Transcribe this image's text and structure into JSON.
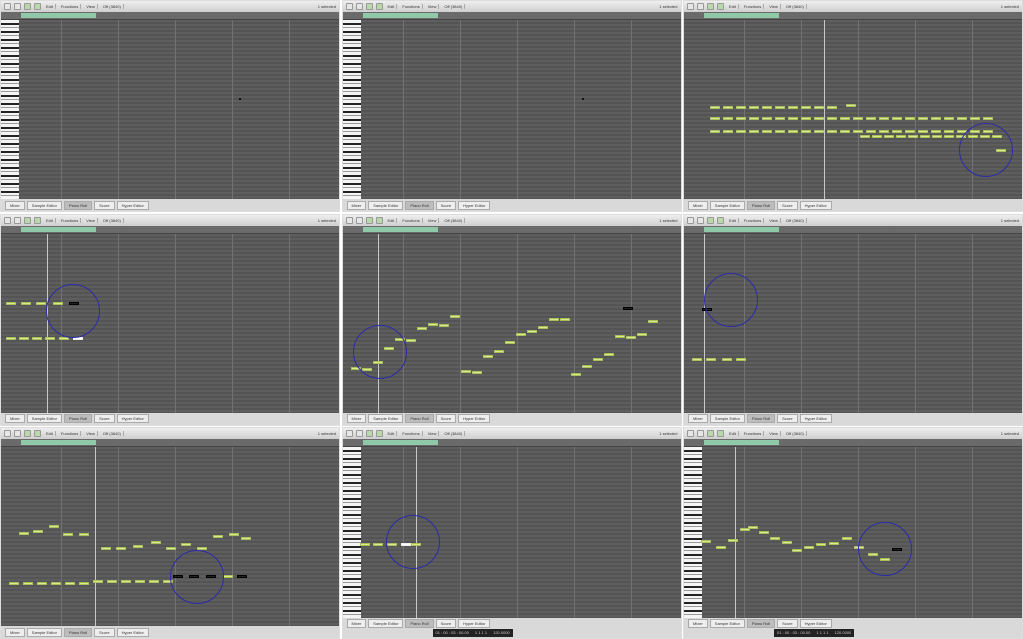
{
  "toolbar": {
    "menus": [
      "Edit",
      "Functions",
      "View"
    ],
    "selector": "Off (3840)",
    "track_label": "1 selected"
  },
  "bottom_tabs": [
    "Mixer",
    "Sample Editor",
    "Piano Roll",
    "Score",
    "Hyper Editor"
  ],
  "active_tab": "Piano Roll",
  "transport": {
    "position": "01 : 00 : 03 : 00.00",
    "bars": "1 1 1 1",
    "tempo": "120.0000"
  },
  "colors": {
    "note": "#d8ec8a",
    "region": "#8fc9a9",
    "highlight_circle": "#2b2ba8",
    "grid": "#5a5a5a"
  },
  "panels": [
    {
      "keyboard": true,
      "transport": false
    },
    {
      "keyboard": true,
      "transport": false
    },
    {
      "keyboard": false,
      "transport": false
    },
    {
      "keyboard": false,
      "transport": false
    },
    {
      "keyboard": false,
      "transport": false
    },
    {
      "keyboard": false,
      "transport": false
    },
    {
      "keyboard": false,
      "transport": false
    },
    {
      "keyboard": true,
      "transport": true
    },
    {
      "keyboard": true,
      "transport": true
    }
  ]
}
